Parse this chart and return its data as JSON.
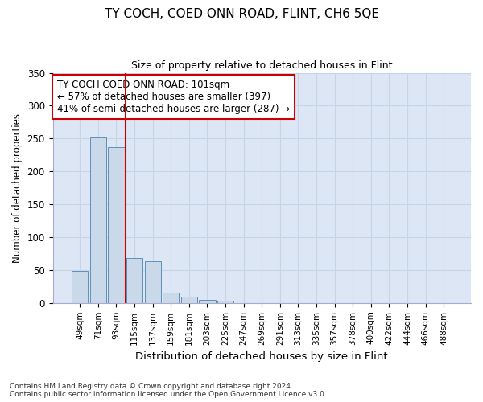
{
  "title": "TY COCH, COED ONN ROAD, FLINT, CH6 5QE",
  "subtitle": "Size of property relative to detached houses in Flint",
  "xlabel": "Distribution of detached houses by size in Flint",
  "ylabel": "Number of detached properties",
  "footer_line1": "Contains HM Land Registry data © Crown copyright and database right 2024.",
  "footer_line2": "Contains public sector information licensed under the Open Government Licence v3.0.",
  "annotation_line1": "TY COCH COED ONN ROAD: 101sqm",
  "annotation_line2": "← 57% of detached houses are smaller (397)",
  "annotation_line3": "41% of semi-detached houses are larger (287) →",
  "bar_color": "#c9d9ea",
  "bar_edge_color": "#6090b8",
  "vline_color": "#cc0000",
  "annotation_box_edge_color": "#cc0000",
  "categories": [
    "49sqm",
    "71sqm",
    "93sqm",
    "115sqm",
    "137sqm",
    "159sqm",
    "181sqm",
    "203sqm",
    "225sqm",
    "247sqm",
    "269sqm",
    "291sqm",
    "313sqm",
    "335sqm",
    "357sqm",
    "378sqm",
    "400sqm",
    "422sqm",
    "444sqm",
    "466sqm",
    "488sqm"
  ],
  "values": [
    49,
    252,
    237,
    68,
    63,
    16,
    9,
    5,
    3,
    0,
    0,
    0,
    0,
    0,
    0,
    0,
    0,
    0,
    0,
    0,
    0
  ],
  "ylim": [
    0,
    350
  ],
  "yticks": [
    0,
    50,
    100,
    150,
    200,
    250,
    300,
    350
  ],
  "grid_color": "#c8d4e8",
  "bg_color": "#dce6f5",
  "vline_x": 2.5,
  "figsize": [
    6.0,
    5.0
  ],
  "dpi": 100
}
